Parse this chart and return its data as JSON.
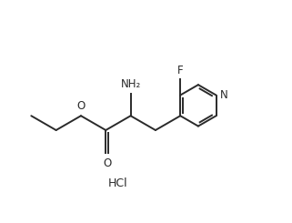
{
  "bg_color": "#ffffff",
  "line_color": "#2a2a2a",
  "line_width": 1.4,
  "font_size": 8.5,
  "label_F": "F",
  "label_N": "N",
  "label_NH2": "NH₂",
  "label_O_ester": "O",
  "label_O_carbonyl": "O",
  "label_HCl": "HCl"
}
